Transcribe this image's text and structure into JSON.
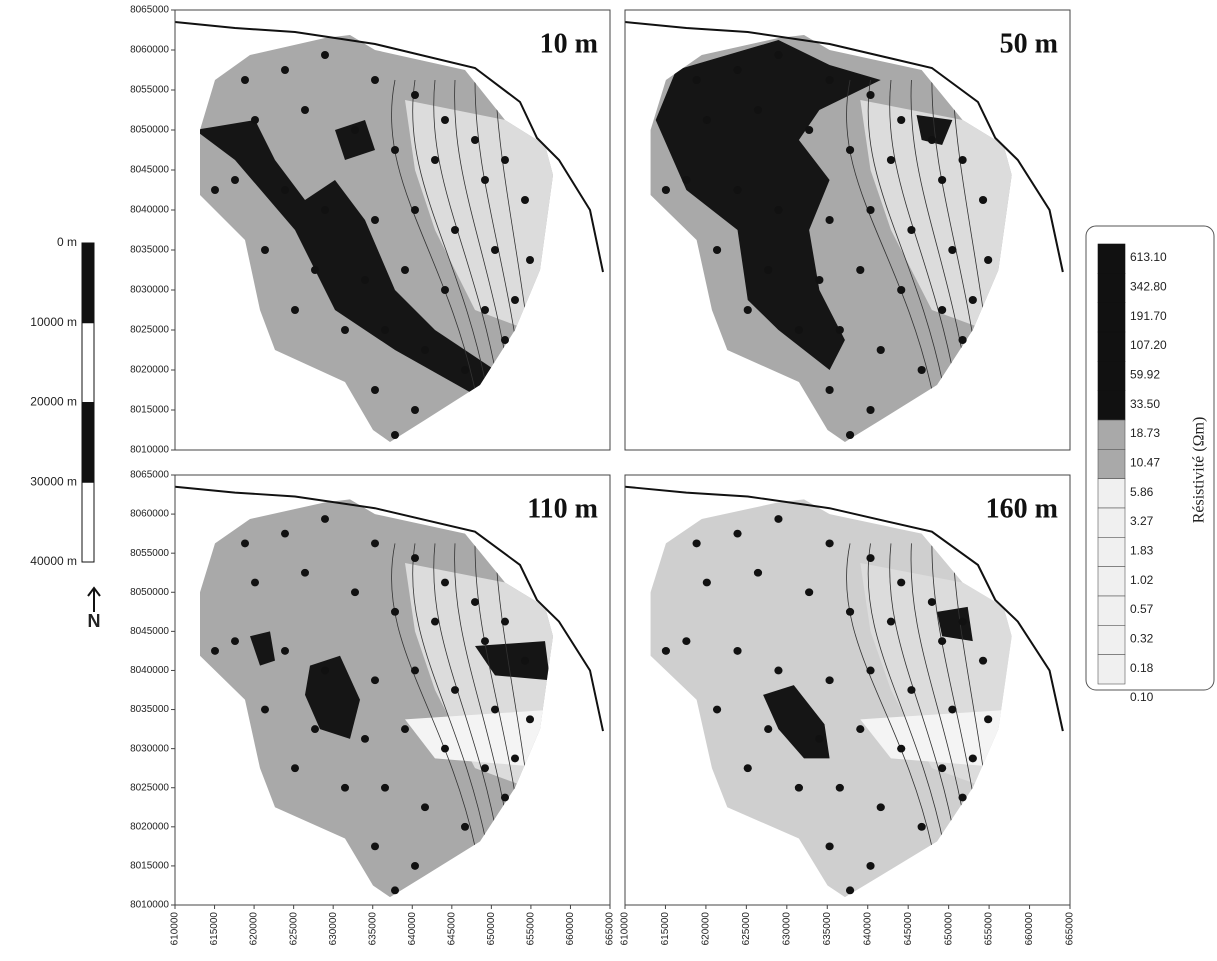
{
  "panels": [
    {
      "title": "10 m"
    },
    {
      "title": "50 m"
    },
    {
      "title": "110 m"
    },
    {
      "title": "160 m"
    }
  ],
  "y_axis": {
    "ticks": [
      8065000,
      8060000,
      8055000,
      8050000,
      8045000,
      8040000,
      8035000,
      8030000,
      8025000,
      8020000,
      8015000,
      8010000
    ]
  },
  "x_axis": {
    "ticks": [
      610000,
      615000,
      620000,
      625000,
      630000,
      635000,
      640000,
      645000,
      650000,
      655000,
      660000,
      665000
    ]
  },
  "depth_scale": {
    "labels": [
      "0 m",
      "10000 m",
      "20000 m",
      "30000 m",
      "40000 m"
    ]
  },
  "north": "N",
  "legend": {
    "title": "Résistivité (Ωm)",
    "labels": [
      "613.10",
      "342.80",
      "191.70",
      "107.20",
      "59.92",
      "33.50",
      "18.73",
      "10.47",
      "5.86",
      "3.27",
      "1.83",
      "1.02",
      "0.57",
      "0.32",
      "0.18",
      "0.10"
    ]
  }
}
